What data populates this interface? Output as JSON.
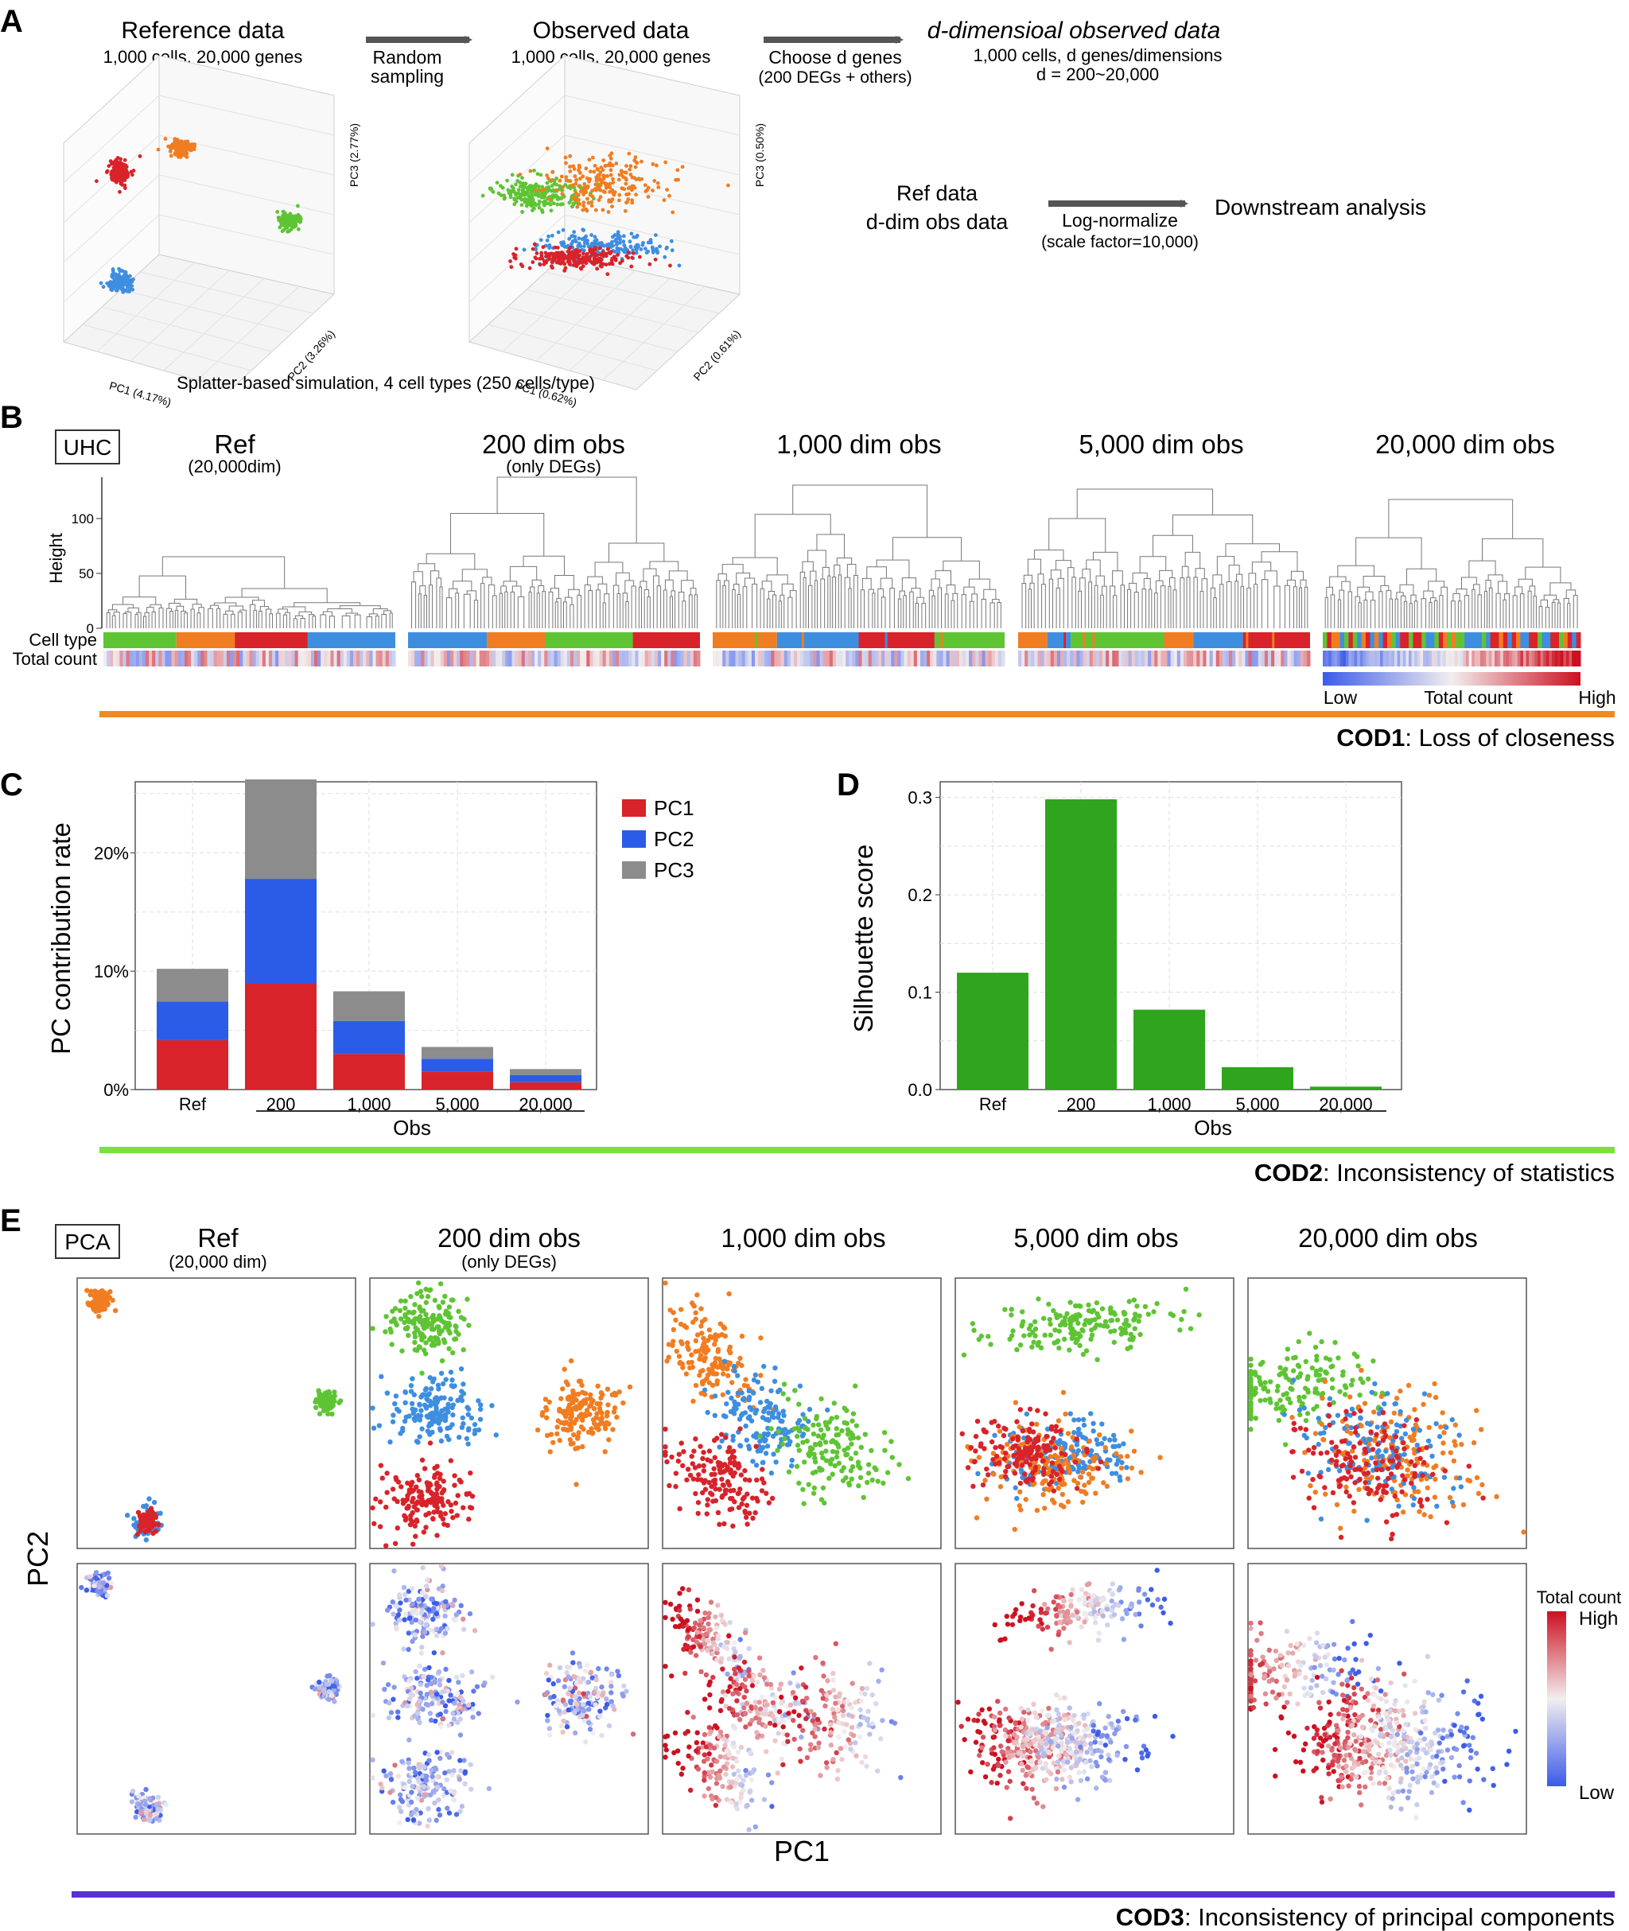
{
  "colors": {
    "red": "#d8232a",
    "orange": "#f07d22",
    "green": "#5fc434",
    "blue": "#3e8ee0",
    "bar_blue": "#2a5ce8",
    "bar_gray": "#8c8c8c",
    "sil_green": "#2ea51c",
    "cod1": "#f08a24",
    "cod2": "#77e23a",
    "cod3": "#5a2fd6"
  },
  "panels": {
    "a": "A",
    "b": "B",
    "c": "C",
    "d": "D",
    "e": "E"
  },
  "panel_a": {
    "ref_title": "Reference data",
    "ref_sub": "1,000 cells, 20,000 genes",
    "arrow1": [
      "Random",
      "sampling"
    ],
    "obs_title": "Observed data",
    "obs_sub": "1,000 cells, 20,000 genes",
    "arrow2": [
      "Choose d genes",
      "(200 DEGs + others)"
    ],
    "ddim_title": "d-dimensioal observed data",
    "ddim_sub1": "1,000 cells, d genes/dimensions",
    "ddim_sub2": "d = 200~20,000",
    "ref_axes": {
      "pc1": "PC1 (4.17%)",
      "pc2": "PC2 (3.26%)",
      "pc3": "PC3 (2.77%)"
    },
    "obs_axes": {
      "pc1": "PC1 (0.62%)",
      "pc2": "PC2 (0.61%)",
      "pc3": "PC3 (0.50%)"
    },
    "flow_left": [
      "Ref data",
      "d-dim obs data"
    ],
    "flow_arrow": [
      "Log-normalize",
      "(scale factor=10,000)"
    ],
    "flow_right": "Downstream analysis",
    "caption": "Splatter-based simulation, 4 cell types (250 cells/type)"
  },
  "panel_b": {
    "tag": "UHC",
    "titles": [
      "Ref",
      "200 dim obs",
      "1,000 dim obs",
      "5,000 dim obs",
      "20,000 dim obs"
    ],
    "subtitles": [
      "(20,000dim)",
      "(only DEGs)",
      "",
      "",
      ""
    ],
    "y_label": "Height",
    "y_ticks": [
      "100",
      "50",
      "0"
    ],
    "row_labels": [
      "Cell type",
      "Total count"
    ],
    "legend": {
      "low": "Low",
      "title": "Total count",
      "high": "High"
    },
    "cod": {
      "bold": "COD1",
      "text": ": Loss of closeness"
    }
  },
  "chart_data": [
    {
      "type": "bar",
      "title": "",
      "ylabel": "PC contribution rate",
      "xlabel": "Obs",
      "categories": [
        "Ref",
        "200",
        "1,000",
        "5,000",
        "20,000"
      ],
      "series": [
        {
          "name": "PC1",
          "values": [
            4.17,
            9.0,
            3.0,
            1.5,
            0.62
          ]
        },
        {
          "name": "PC2",
          "values": [
            3.26,
            8.8,
            2.8,
            1.1,
            0.61
          ]
        },
        {
          "name": "PC3",
          "values": [
            2.77,
            8.4,
            2.5,
            1.0,
            0.5
          ]
        }
      ],
      "ylim": [
        0,
        26
      ],
      "y_ticks": [
        "0%",
        "10%",
        "20%"
      ],
      "stacked": true,
      "legend": "top-right"
    },
    {
      "type": "bar",
      "title": "",
      "ylabel": "Silhouette score",
      "xlabel": "Obs",
      "categories": [
        "Ref",
        "200",
        "1,000",
        "5,000",
        "20,000"
      ],
      "values": [
        0.12,
        0.298,
        0.082,
        0.023,
        0.003
      ],
      "ylim": [
        0,
        0.3
      ],
      "y_ticks": [
        "0.0",
        "0.1",
        "0.2",
        "0.3"
      ]
    }
  ],
  "cod2": {
    "bold": "COD2",
    "text": ": Inconsistency of statistics"
  },
  "panel_e": {
    "tag": "PCA",
    "titles": [
      "Ref",
      "200 dim obs",
      "1,000 dim obs",
      "5,000 dim obs",
      "20,000 dim obs"
    ],
    "subtitles": [
      "(20,000 dim)",
      "(only DEGs)",
      "",
      "",
      ""
    ],
    "x_label": "PC1",
    "y_label": "PC2",
    "legend": {
      "title": "Total count",
      "high": "High",
      "low": "Low"
    },
    "cod": {
      "bold": "COD3",
      "text": ": Inconsistency of principal components"
    }
  }
}
